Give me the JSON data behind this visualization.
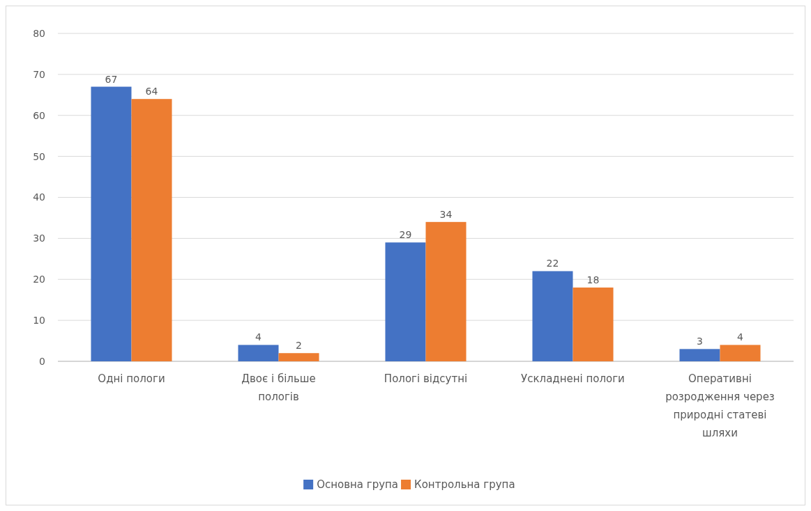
{
  "chart_data": {
    "type": "bar",
    "categories": [
      "Одні пологи",
      "Двоє і більше пологів",
      "Пологі відсутні",
      "Ускладнені пологи",
      "Оперативні розродження через природні статеві шляхи"
    ],
    "series": [
      {
        "name": "Основна група",
        "color": "#4472c4",
        "values": [
          67,
          4,
          29,
          22,
          3
        ]
      },
      {
        "name": "Контрольна група",
        "color": "#ed7d31",
        "values": [
          64,
          2,
          34,
          18,
          4
        ]
      }
    ],
    "ylim": [
      0,
      80
    ],
    "yticks": [
      0,
      10,
      20,
      30,
      40,
      50,
      60,
      70,
      80
    ],
    "grid": "y",
    "data_labels": true,
    "legend": "bottom"
  }
}
